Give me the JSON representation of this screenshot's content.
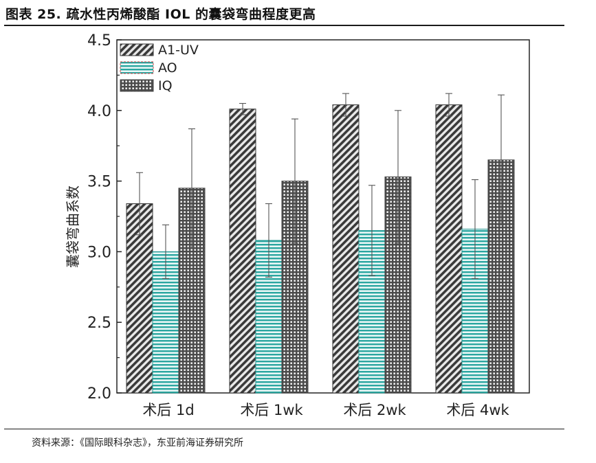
{
  "figure": {
    "title": "图表 25. 疏水性丙烯酸酯 IOL 的囊袋弯曲程度更高",
    "source": "资料来源：《国际眼科杂志》，东亚前海证券研究所"
  },
  "chart_data": {
    "type": "bar",
    "title": "",
    "xlabel": "",
    "ylabel": "囊袋弯曲系数",
    "ylim": [
      2.0,
      4.5
    ],
    "yticks": [
      "2.0",
      "2.5",
      "3.0",
      "3.5",
      "4.0",
      "4.5"
    ],
    "grid": false,
    "legend_position": "top-left",
    "categories": [
      "术后 1d",
      "术后 1wk",
      "术后 2wk",
      "术后 4wk"
    ],
    "series": [
      {
        "name": "A1-UV",
        "pattern": "diagonal-hatch",
        "color": "#3a3a3a",
        "values": [
          3.34,
          4.01,
          4.04,
          4.04
        ],
        "errors": [
          0.22,
          0.04,
          0.08,
          0.08
        ]
      },
      {
        "name": "AO",
        "pattern": "horizontal-stripes",
        "color": "#2aa6a0",
        "values": [
          3.0,
          3.08,
          3.15,
          3.16
        ],
        "errors": [
          0.19,
          0.26,
          0.32,
          0.35
        ]
      },
      {
        "name": "IQ",
        "pattern": "grid-hatch",
        "color": "#4a4a4a",
        "values": [
          3.45,
          3.5,
          3.53,
          3.65
        ],
        "errors": [
          0.42,
          0.44,
          0.47,
          0.46
        ]
      }
    ]
  }
}
